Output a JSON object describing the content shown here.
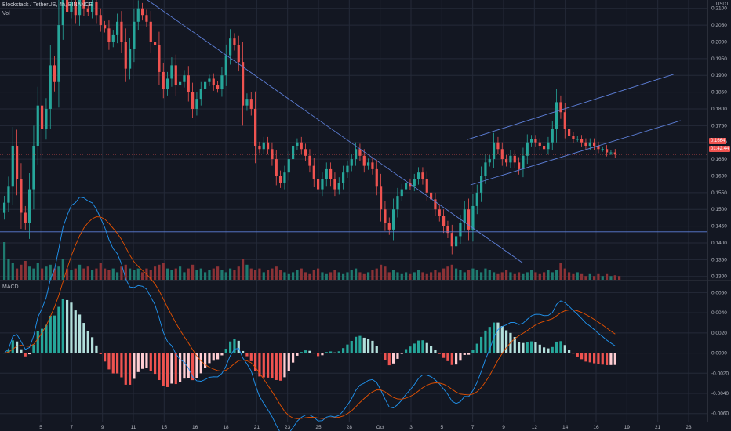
{
  "header": {
    "symbol_line": "Blockstack / TetherUS, 4h, BINANCE",
    "volume_label": "Vol",
    "currency": "USDT"
  },
  "indicator": {
    "label": "MACD"
  },
  "colors": {
    "background": "#131722",
    "grid": "#242a38",
    "up": "#26a69a",
    "down": "#ef5350",
    "up_vol": "#1f7a6f",
    "down_vol": "#8c3236",
    "trendline": "#5d7fd8",
    "macd_line": "#2196f3",
    "signal_line": "#e65100",
    "hist_up_strong": "#26a69a",
    "hist_up_weak": "#b2dfdb",
    "hist_down_strong": "#ef5350",
    "hist_down_weak": "#ffcdd2"
  },
  "price_tags": {
    "last": "0.1664",
    "countdown": "01:42:44"
  },
  "chart_data": [
    {
      "type": "candlestick",
      "title": "Blockstack / TetherUS, 4h, BINANCE",
      "x_ticks": [
        "5",
        "7",
        "9",
        "11",
        "15",
        "16",
        "18",
        "21",
        "23",
        "25",
        "28",
        "Oct",
        "3",
        "5",
        "7",
        "9",
        "12",
        "14",
        "16",
        "19",
        "21",
        "23"
      ],
      "y_ticks": [
        0.21,
        0.205,
        0.2,
        0.195,
        0.19,
        0.185,
        0.18,
        0.175,
        0.17,
        0.165,
        0.16,
        0.155,
        0.15,
        0.145,
        0.14,
        0.135,
        0.13
      ],
      "ylim": [
        0.129,
        0.2125
      ],
      "close": [
        0.152,
        0.157,
        0.169,
        0.159,
        0.149,
        0.146,
        0.156,
        0.169,
        0.181,
        0.174,
        0.18,
        0.193,
        0.188,
        0.205,
        0.214,
        0.209,
        0.212,
        0.208,
        0.214,
        0.21,
        0.209,
        0.212,
        0.208,
        0.205,
        0.204,
        0.2,
        0.202,
        0.206,
        0.2,
        0.192,
        0.198,
        0.206,
        0.21,
        0.208,
        0.206,
        0.2,
        0.199,
        0.191,
        0.186,
        0.189,
        0.193,
        0.187,
        0.188,
        0.19,
        0.185,
        0.18,
        0.183,
        0.186,
        0.188,
        0.189,
        0.187,
        0.186,
        0.19,
        0.196,
        0.201,
        0.199,
        0.194,
        0.181,
        0.183,
        0.18,
        0.169,
        0.168,
        0.17,
        0.168,
        0.165,
        0.16,
        0.158,
        0.161,
        0.165,
        0.169,
        0.17,
        0.168,
        0.166,
        0.163,
        0.159,
        0.156,
        0.159,
        0.162,
        0.159,
        0.156,
        0.158,
        0.161,
        0.163,
        0.165,
        0.168,
        0.166,
        0.163,
        0.164,
        0.162,
        0.157,
        0.15,
        0.146,
        0.144,
        0.15,
        0.154,
        0.156,
        0.158,
        0.157,
        0.159,
        0.161,
        0.159,
        0.155,
        0.153,
        0.15,
        0.148,
        0.145,
        0.143,
        0.139,
        0.142,
        0.146,
        0.15,
        0.144,
        0.151,
        0.155,
        0.16,
        0.164,
        0.165,
        0.17,
        0.168,
        0.165,
        0.164,
        0.166,
        0.164,
        0.162,
        0.166,
        0.17,
        0.171,
        0.17,
        0.169,
        0.168,
        0.17,
        0.174,
        0.182,
        0.179,
        0.174,
        0.172,
        0.171,
        0.171,
        0.17,
        0.169,
        0.17,
        0.169,
        0.168,
        0.168,
        0.167,
        0.167,
        0.1664
      ],
      "volume_relative": [
        1.0,
        0.55,
        0.45,
        0.3,
        0.4,
        0.5,
        0.35,
        0.3,
        0.45,
        0.3,
        0.35,
        0.4,
        0.3,
        0.35,
        0.55,
        0.3,
        0.25,
        0.3,
        0.4,
        0.3,
        0.35,
        0.25,
        0.3,
        0.45,
        0.3,
        0.25,
        0.3,
        0.2,
        0.35,
        0.4,
        0.3,
        0.25,
        0.3,
        0.2,
        0.3,
        0.25,
        0.35,
        0.4,
        0.45,
        0.3,
        0.25,
        0.3,
        0.35,
        0.2,
        0.3,
        0.4,
        0.25,
        0.3,
        0.2,
        0.25,
        0.3,
        0.35,
        0.25,
        0.2,
        0.3,
        0.25,
        0.35,
        0.55,
        0.4,
        0.3,
        0.25,
        0.3,
        0.2,
        0.25,
        0.3,
        0.35,
        0.25,
        0.2,
        0.15,
        0.2,
        0.25,
        0.3,
        0.2,
        0.15,
        0.25,
        0.3,
        0.2,
        0.15,
        0.2,
        0.25,
        0.2,
        0.15,
        0.2,
        0.25,
        0.3,
        0.2,
        0.15,
        0.2,
        0.25,
        0.3,
        0.4,
        0.35,
        0.2,
        0.25,
        0.2,
        0.15,
        0.2,
        0.15,
        0.2,
        0.25,
        0.2,
        0.15,
        0.2,
        0.25,
        0.2,
        0.3,
        0.35,
        0.4,
        0.3,
        0.25,
        0.2,
        0.25,
        0.3,
        0.25,
        0.2,
        0.3,
        0.25,
        0.2,
        0.15,
        0.2,
        0.25,
        0.2,
        0.15,
        0.2,
        0.15,
        0.2,
        0.25,
        0.2,
        0.15,
        0.2,
        0.25,
        0.2,
        0.25,
        0.45,
        0.3,
        0.2,
        0.15,
        0.2,
        0.15,
        0.1,
        0.15,
        0.1,
        0.15,
        0.1,
        0.15,
        0.1,
        0.12,
        0.1
      ],
      "trendlines": [
        {
          "name": "descending-resistance",
          "points": [
            [
              0.205,
              0.213
            ],
            [
              0.739,
              0.134
            ]
          ]
        },
        {
          "name": "horizontal-support",
          "points": [
            [
              0.0,
              0.1433
            ],
            [
              1.0,
              0.1433
            ]
          ]
        },
        {
          "name": "channel-upper",
          "points": [
            [
              0.66,
              0.1708
            ],
            [
              0.952,
              0.1903
            ]
          ]
        },
        {
          "name": "channel-lower",
          "points": [
            [
              0.665,
              0.1573
            ],
            [
              0.962,
              0.1765
            ]
          ]
        }
      ],
      "macd": {
        "y_ticks": [
          0.006,
          0.004,
          0.002,
          0.0,
          -0.002,
          -0.004,
          -0.006
        ],
        "ylim": [
          -0.0068,
          0.0072
        ]
      }
    }
  ]
}
